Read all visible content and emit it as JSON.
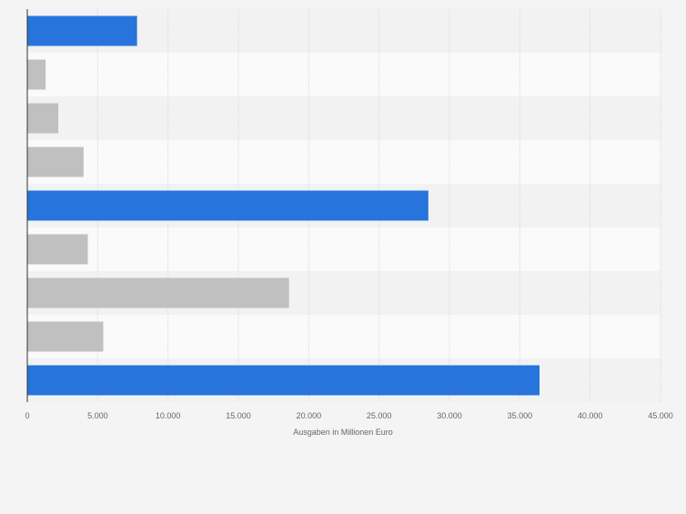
{
  "chart_data": {
    "type": "bar",
    "orientation": "horizontal",
    "categories": [
      "",
      "",
      "",
      "",
      "",
      "",
      "",
      "",
      ""
    ],
    "values": [
      7800,
      1300,
      2200,
      4000,
      28500,
      4300,
      18600,
      5400,
      36400
    ],
    "highlighted": [
      true,
      false,
      false,
      false,
      true,
      false,
      false,
      false,
      true
    ],
    "xlabel": "Ausgaben in Millionen Euro",
    "xlim": [
      0,
      45000
    ],
    "x_ticks": [
      0,
      5000,
      10000,
      15000,
      20000,
      25000,
      30000,
      35000,
      40000,
      45000
    ],
    "x_tick_labels": [
      "0",
      "5.000",
      "10.000",
      "15.000",
      "20.000",
      "25.000",
      "30.000",
      "35.000",
      "40.000",
      "45.000"
    ],
    "grid": true,
    "colors": {
      "highlight": "#2775dc",
      "default": "#c0c0c0",
      "band_light": "#fafafa",
      "band_dark": "#f2f2f2",
      "grid": "#d9d9d9",
      "axis": "#333333",
      "text": "#666666"
    }
  }
}
